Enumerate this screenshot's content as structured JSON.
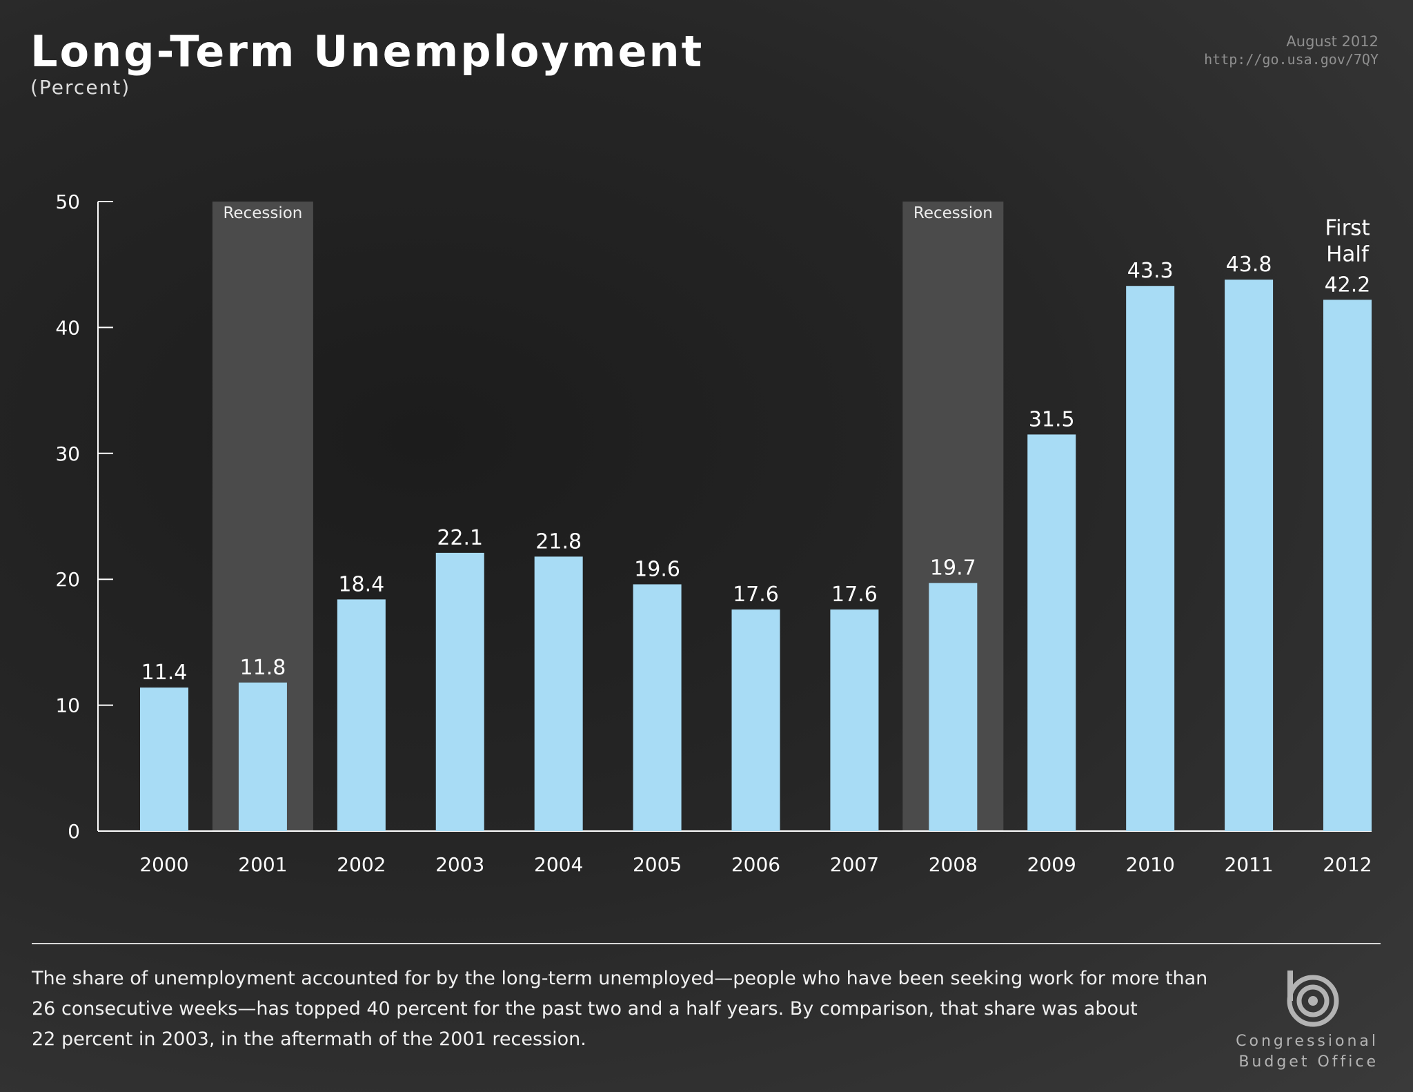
{
  "header": {
    "title": "Long-Term Unemployment",
    "subtitle": "(Percent)",
    "date": "August 2012",
    "url": "http://go.usa.gov/7QY"
  },
  "chart_data": {
    "type": "bar",
    "categories": [
      "2000",
      "2001",
      "2002",
      "2003",
      "2004",
      "2005",
      "2006",
      "2007",
      "2008",
      "2009",
      "2010",
      "2011",
      "2012"
    ],
    "values": [
      11.4,
      11.8,
      18.4,
      22.1,
      21.8,
      19.6,
      17.6,
      17.6,
      19.7,
      31.5,
      43.3,
      43.8,
      42.2
    ],
    "ylim": [
      0,
      50
    ],
    "yticks": [
      0,
      10,
      20,
      30,
      40,
      50
    ],
    "bar_color": "#a8dcf5",
    "recessions": [
      {
        "label": "Recession",
        "category": "2001"
      },
      {
        "label": "Recession",
        "category": "2008"
      }
    ],
    "annotations": [
      {
        "category": "2012",
        "text": "First"
      },
      {
        "category": "2012",
        "text": "Half"
      }
    ],
    "grid": false
  },
  "footer": {
    "note_lines": [
      "The share of unemployment accounted for by the long-term unemployed—people who have been seeking work for more than",
      "26 consecutive weeks—has topped 40 percent for the past two and a half years. By comparison, that share was about",
      "22 percent in 2003, in the aftermath of the 2001 recession."
    ],
    "agency_line1": "Congressional",
    "agency_line2": "Budget Office"
  }
}
